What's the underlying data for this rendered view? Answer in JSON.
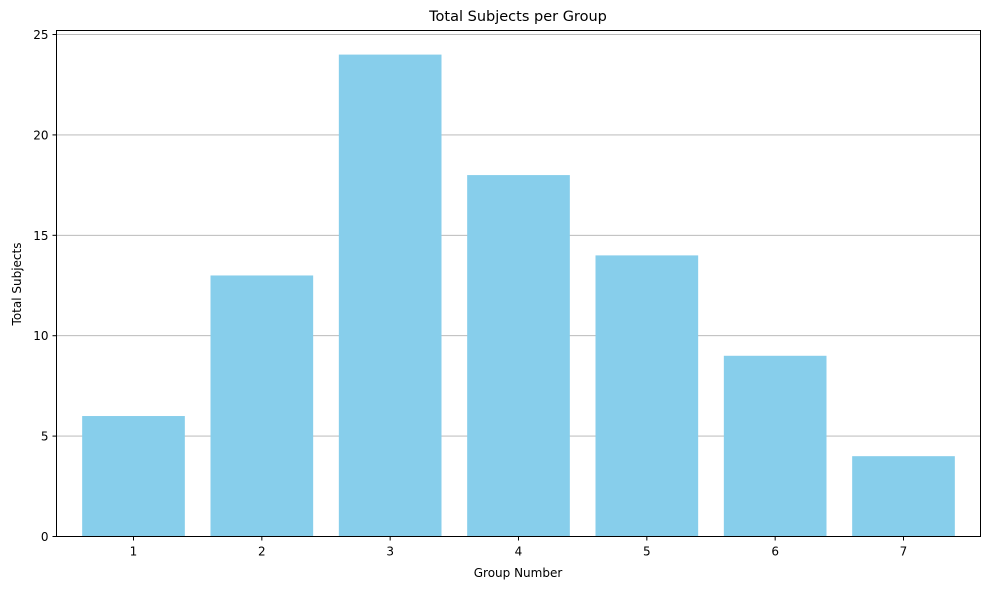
{
  "chart_data": {
    "type": "bar",
    "title": "Total Subjects per Group",
    "xlabel": "Group Number",
    "ylabel": "Total Subjects",
    "categories": [
      "1",
      "2",
      "3",
      "4",
      "5",
      "6",
      "7"
    ],
    "values": [
      6,
      13,
      24,
      18,
      14,
      9,
      4
    ],
    "ylim": [
      0,
      25.2
    ],
    "yticks": [
      0,
      5,
      10,
      15,
      20,
      25
    ],
    "grid": "y-major",
    "bar_color": "#87ceeb",
    "grid_color": "#b0b0b0"
  }
}
